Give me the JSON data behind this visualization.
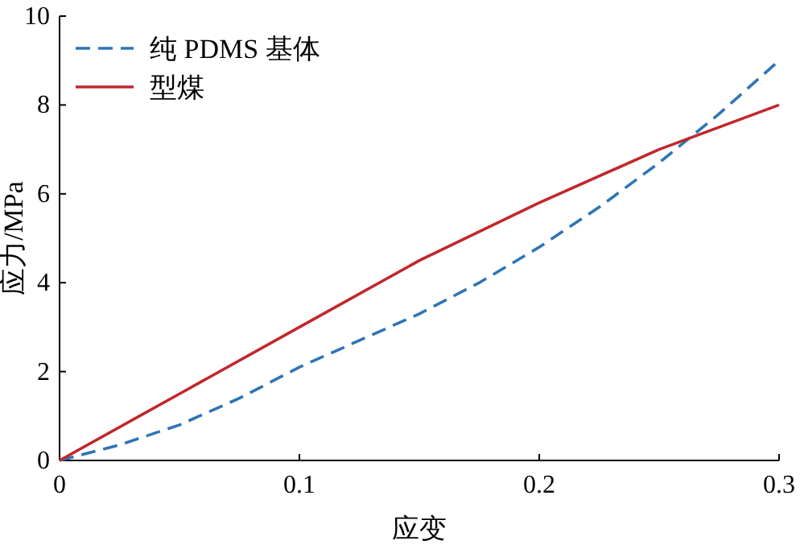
{
  "chart_data": {
    "type": "line",
    "xlabel": "应变",
    "ylabel": "应力/MPa",
    "xlim": [
      0,
      0.3
    ],
    "ylim": [
      0,
      10
    ],
    "xticks": [
      0,
      0.1,
      0.2,
      0.3
    ],
    "yticks": [
      0,
      2,
      4,
      6,
      8,
      10
    ],
    "grid": false,
    "legend": "top left",
    "series": [
      {
        "name": "纯 PDMS 基体",
        "color": "#2e75b6",
        "line_style": "dashed",
        "x": [
          0,
          0.025,
          0.05,
          0.075,
          0.1,
          0.125,
          0.15,
          0.175,
          0.2,
          0.225,
          0.25,
          0.275,
          0.3
        ],
        "values": [
          0,
          0.35,
          0.8,
          1.4,
          2.1,
          2.7,
          3.3,
          4.0,
          4.8,
          5.7,
          6.7,
          7.8,
          9.0
        ]
      },
      {
        "name": "型煤",
        "color": "#c0282d",
        "line_style": "solid",
        "x": [
          0,
          0.05,
          0.1,
          0.15,
          0.2,
          0.25,
          0.3
        ],
        "values": [
          0,
          1.5,
          3.0,
          4.5,
          5.8,
          7.0,
          8.0
        ]
      }
    ]
  }
}
